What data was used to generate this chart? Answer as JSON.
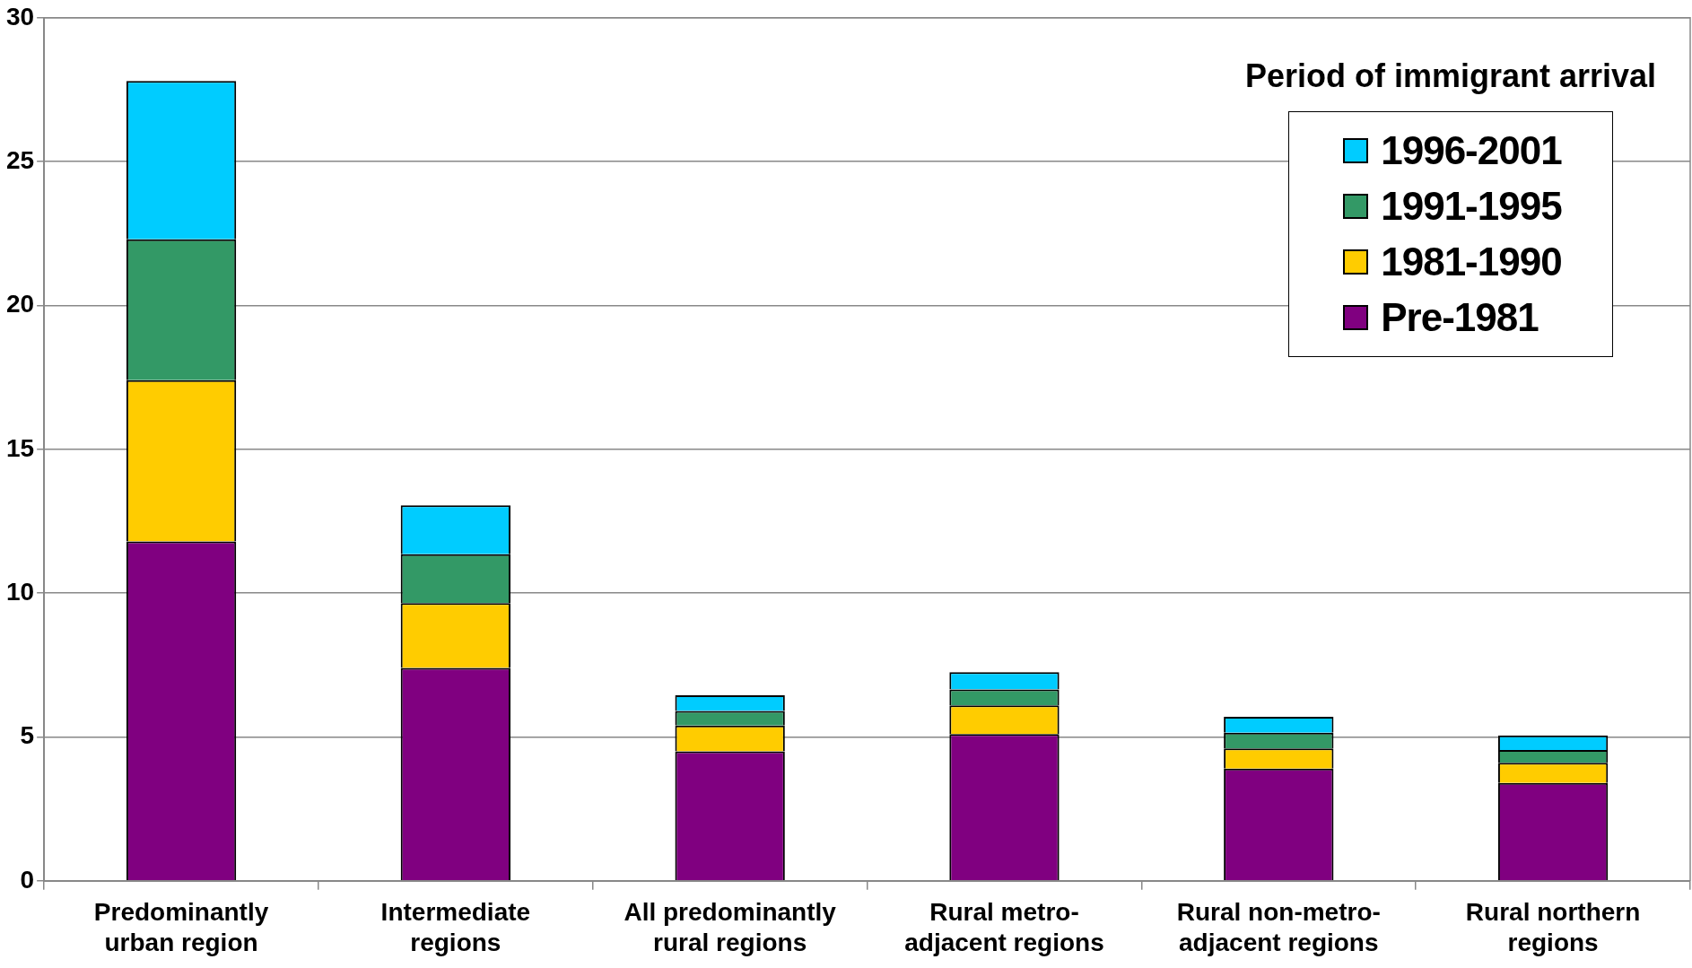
{
  "chart_data": {
    "type": "bar",
    "stacked": true,
    "legend": "top right",
    "legend_title": "Period of immigrant arrival",
    "grid": "y",
    "categories": [
      "Predominantly urban region",
      "Intermediate regions",
      "All predominantly rural regions",
      "Rural metro-adjacent regions",
      "Rural non-metro-adjacent regions",
      "Rural northern regions"
    ],
    "ylim": [
      0,
      30
    ],
    "yticks": [
      0,
      5,
      10,
      15,
      20,
      25,
      30
    ],
    "series": [
      {
        "name": "Pre-1981",
        "color": "#800080",
        "values": [
          11.8,
          7.4,
          4.5,
          5.1,
          3.9,
          3.4
        ]
      },
      {
        "name": "1981-1990",
        "color": "#ffcc00",
        "values": [
          5.6,
          2.25,
          0.9,
          1.0,
          0.7,
          0.7
        ]
      },
      {
        "name": "1991-1995",
        "color": "#339966",
        "values": [
          4.9,
          1.7,
          0.5,
          0.55,
          0.55,
          0.45
        ]
      },
      {
        "name": "1996-2001",
        "color": "#00ccff",
        "values": [
          5.5,
          1.7,
          0.55,
          0.6,
          0.55,
          0.5
        ]
      }
    ]
  }
}
